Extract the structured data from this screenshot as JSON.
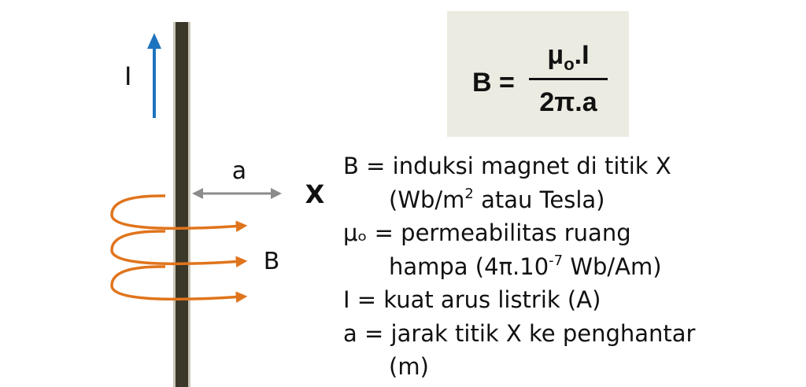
{
  "diagram": {
    "current_label": "I",
    "distance_label": "a",
    "point_label": "X",
    "field_label": "B",
    "colors": {
      "wire": "#3b3729",
      "current_arrow": "#1e73be",
      "field_lines": "#e0741c",
      "distance_arrow": "#8c8c8c",
      "formula_box": "#ecebe2"
    }
  },
  "formula": {
    "lhs": "B =",
    "numerator_mu": "μ",
    "numerator_sub": "o",
    "numerator_rest": ".I",
    "denominator": "2π.a"
  },
  "legend": {
    "line1": "B = induksi magnet di titik X",
    "line2_pre": "(Wb/m",
    "line2_sup": "2",
    "line2_post": " atau Tesla)",
    "line3": "μₒ = permeabilitas ruang",
    "line4_pre": "hampa (4π.10",
    "line4_sup": "-7",
    "line4_post": " Wb/Am)",
    "line5": "I = kuat arus listrik (A)",
    "line6": "a = jarak titik X ke penghantar",
    "line7": "(m)"
  }
}
